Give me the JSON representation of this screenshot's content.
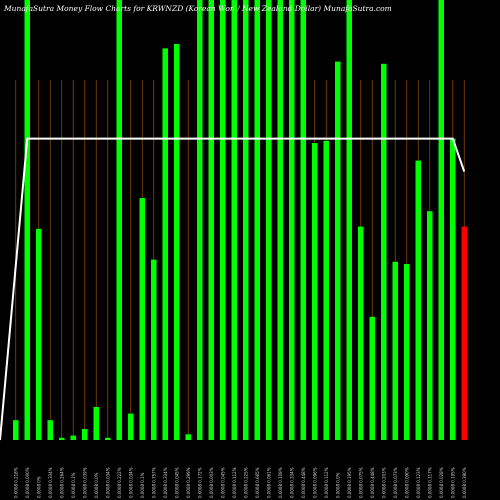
{
  "chart_data": {
    "type": "bar",
    "title": "MunafaSutra  Money Flow  Charts for KRWNZD                          (Korean  Won  / New  Zealand Dollar) MunafaSutra.com",
    "ylim": [
      0,
      100
    ],
    "categories": [
      "0.0008  0.218%",
      "0.0008  0.000%",
      "0.0008  0%",
      "0.0008  0.334%",
      "0.0008  0.264%",
      "0.0008  0.1%",
      "0.0008  0.039%",
      "0.0008  0.0%",
      "0.0008  0.034%",
      "0.0008  0.222%",
      "0.0008  0.034%",
      "0.0008  0.1%",
      "0.0008  0.757%",
      "0.0008  0.334%",
      "0.0008  0.045%",
      "0.0008  0.299%",
      "0.0008  0.172%",
      "0.0008  0.003%",
      "0.0008  0.045%",
      "0.0008  0.112%",
      "0.0008  0.225%",
      "0.0008  0.665%",
      "0.0008  0.061%",
      "0.0008  0.109%",
      "0.0008  0.334%",
      "0.0008  0.448%",
      "0.0008  0.096%",
      "0.0008  0.112%",
      "0.0008  0.0%",
      "0.0008  0.195%",
      "0.0008  0.075%",
      "0.0008  0.448%",
      "0.0008  0.203%",
      "0.0008  0.073%",
      "0.0008  0.090%",
      "0.0008  0.123%",
      "0.0008  0.117%",
      "0.0008  0.028%",
      "0.0008  0.195%",
      "0.0008  0.390%"
    ],
    "values": [
      4.5,
      100,
      48,
      4.5,
      0.5,
      1,
      2.5,
      7.5,
      0.5,
      100,
      6,
      55,
      41,
      89,
      90,
      1.3,
      100,
      100,
      100,
      100,
      100,
      100,
      100,
      100,
      100,
      100,
      67.5,
      68,
      86,
      100,
      48.5,
      28,
      85.5,
      40.5,
      40,
      63.5,
      52,
      100,
      68.5,
      48.5
    ],
    "colors": [
      "green",
      "green",
      "green",
      "green",
      "green",
      "green",
      "green",
      "green",
      "green",
      "green",
      "green",
      "green",
      "green",
      "green",
      "green",
      "green",
      "green",
      "green",
      "green",
      "green",
      "green",
      "green",
      "green",
      "green",
      "green",
      "green",
      "green",
      "green",
      "green",
      "green",
      "green",
      "green",
      "green",
      "green",
      "green",
      "green",
      "green",
      "green",
      "green",
      "red"
    ],
    "line": [
      0,
      68.5,
      68.5,
      68.5,
      68.5,
      68.5,
      68.5,
      68.5,
      68.5,
      68.5,
      68.5,
      68.5,
      68.5,
      68.5,
      68.5,
      68.5,
      68.5,
      68.5,
      68.5,
      68.5,
      68.5,
      68.5,
      68.5,
      68.5,
      68.5,
      68.5,
      68.5,
      68.5,
      68.5,
      68.5,
      68.5,
      68.5,
      68.5,
      68.5,
      68.5,
      68.5,
      68.5,
      68.5,
      68.5,
      61
    ],
    "palette": {
      "green": "#00ff00",
      "red": "#ff0000",
      "line": "#ffffff",
      "grid": "#8b4a00",
      "background": "#000000"
    }
  }
}
